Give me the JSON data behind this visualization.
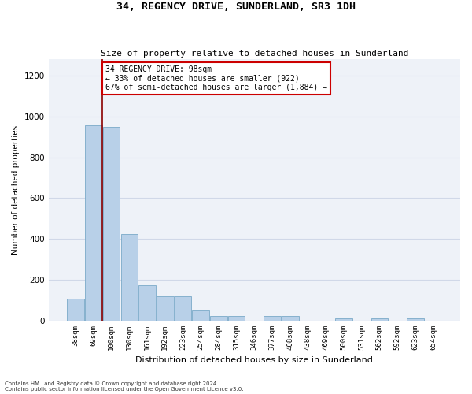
{
  "title1": "34, REGENCY DRIVE, SUNDERLAND, SR3 1DH",
  "title2": "Size of property relative to detached houses in Sunderland",
  "xlabel": "Distribution of detached houses by size in Sunderland",
  "ylabel": "Number of detached properties",
  "categories": [
    "38sqm",
    "69sqm",
    "100sqm",
    "130sqm",
    "161sqm",
    "192sqm",
    "223sqm",
    "254sqm",
    "284sqm",
    "315sqm",
    "346sqm",
    "377sqm",
    "408sqm",
    "438sqm",
    "469sqm",
    "500sqm",
    "531sqm",
    "562sqm",
    "592sqm",
    "623sqm",
    "654sqm"
  ],
  "values": [
    110,
    955,
    950,
    425,
    175,
    120,
    120,
    50,
    25,
    25,
    2,
    25,
    25,
    2,
    2,
    10,
    2,
    10,
    2,
    10,
    2
  ],
  "bar_color": "#b8d0e8",
  "bar_edgecolor": "#7aaac8",
  "bar_linewidth": 0.6,
  "vline_x_index": 1.5,
  "vline_color": "#8b0000",
  "annotation_text": "34 REGENCY DRIVE: 98sqm\n← 33% of detached houses are smaller (922)\n67% of semi-detached houses are larger (1,884) →",
  "annotation_box_color": "#ffffff",
  "annotation_box_edgecolor": "#cc0000",
  "ylim": [
    0,
    1280
  ],
  "yticks": [
    0,
    200,
    400,
    600,
    800,
    1000,
    1200
  ],
  "grid_color": "#d0d8e8",
  "background_color": "#eef2f8",
  "footnote1": "Contains HM Land Registry data © Crown copyright and database right 2024.",
  "footnote2": "Contains public sector information licensed under the Open Government Licence v3.0."
}
